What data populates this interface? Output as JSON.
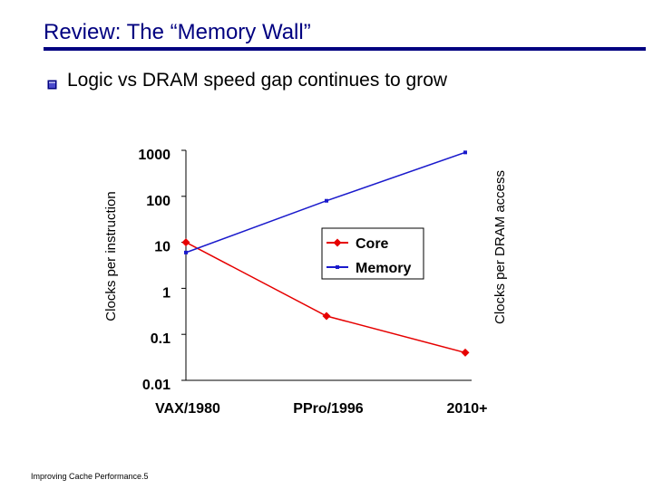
{
  "slide": {
    "title": "Review: The “Memory Wall”",
    "bullet": "Logic vs DRAM speed gap continues to grow",
    "footer": "Improving Cache Performance.5",
    "title_color": "#000080"
  },
  "chart_data": {
    "type": "line",
    "title": "",
    "categories": [
      "VAX/1980",
      "PPro/1996",
      "2010+"
    ],
    "y_scale": "log",
    "ylim": [
      0.01,
      1000
    ],
    "y_ticks": [
      "0.01",
      "0.1",
      "1",
      "10",
      "100",
      "1000"
    ],
    "ylabel": "Clocks per instruction",
    "y2label": "Clocks per DRAM access",
    "xlabel": "",
    "legend_position": "center-right",
    "series": [
      {
        "name": "Core",
        "values": [
          10,
          0.25,
          0.04
        ],
        "color": "#e60000",
        "marker": "diamond"
      },
      {
        "name": "Memory",
        "values": [
          6,
          80,
          900
        ],
        "color": "#1a1acc",
        "marker": "square"
      }
    ]
  }
}
